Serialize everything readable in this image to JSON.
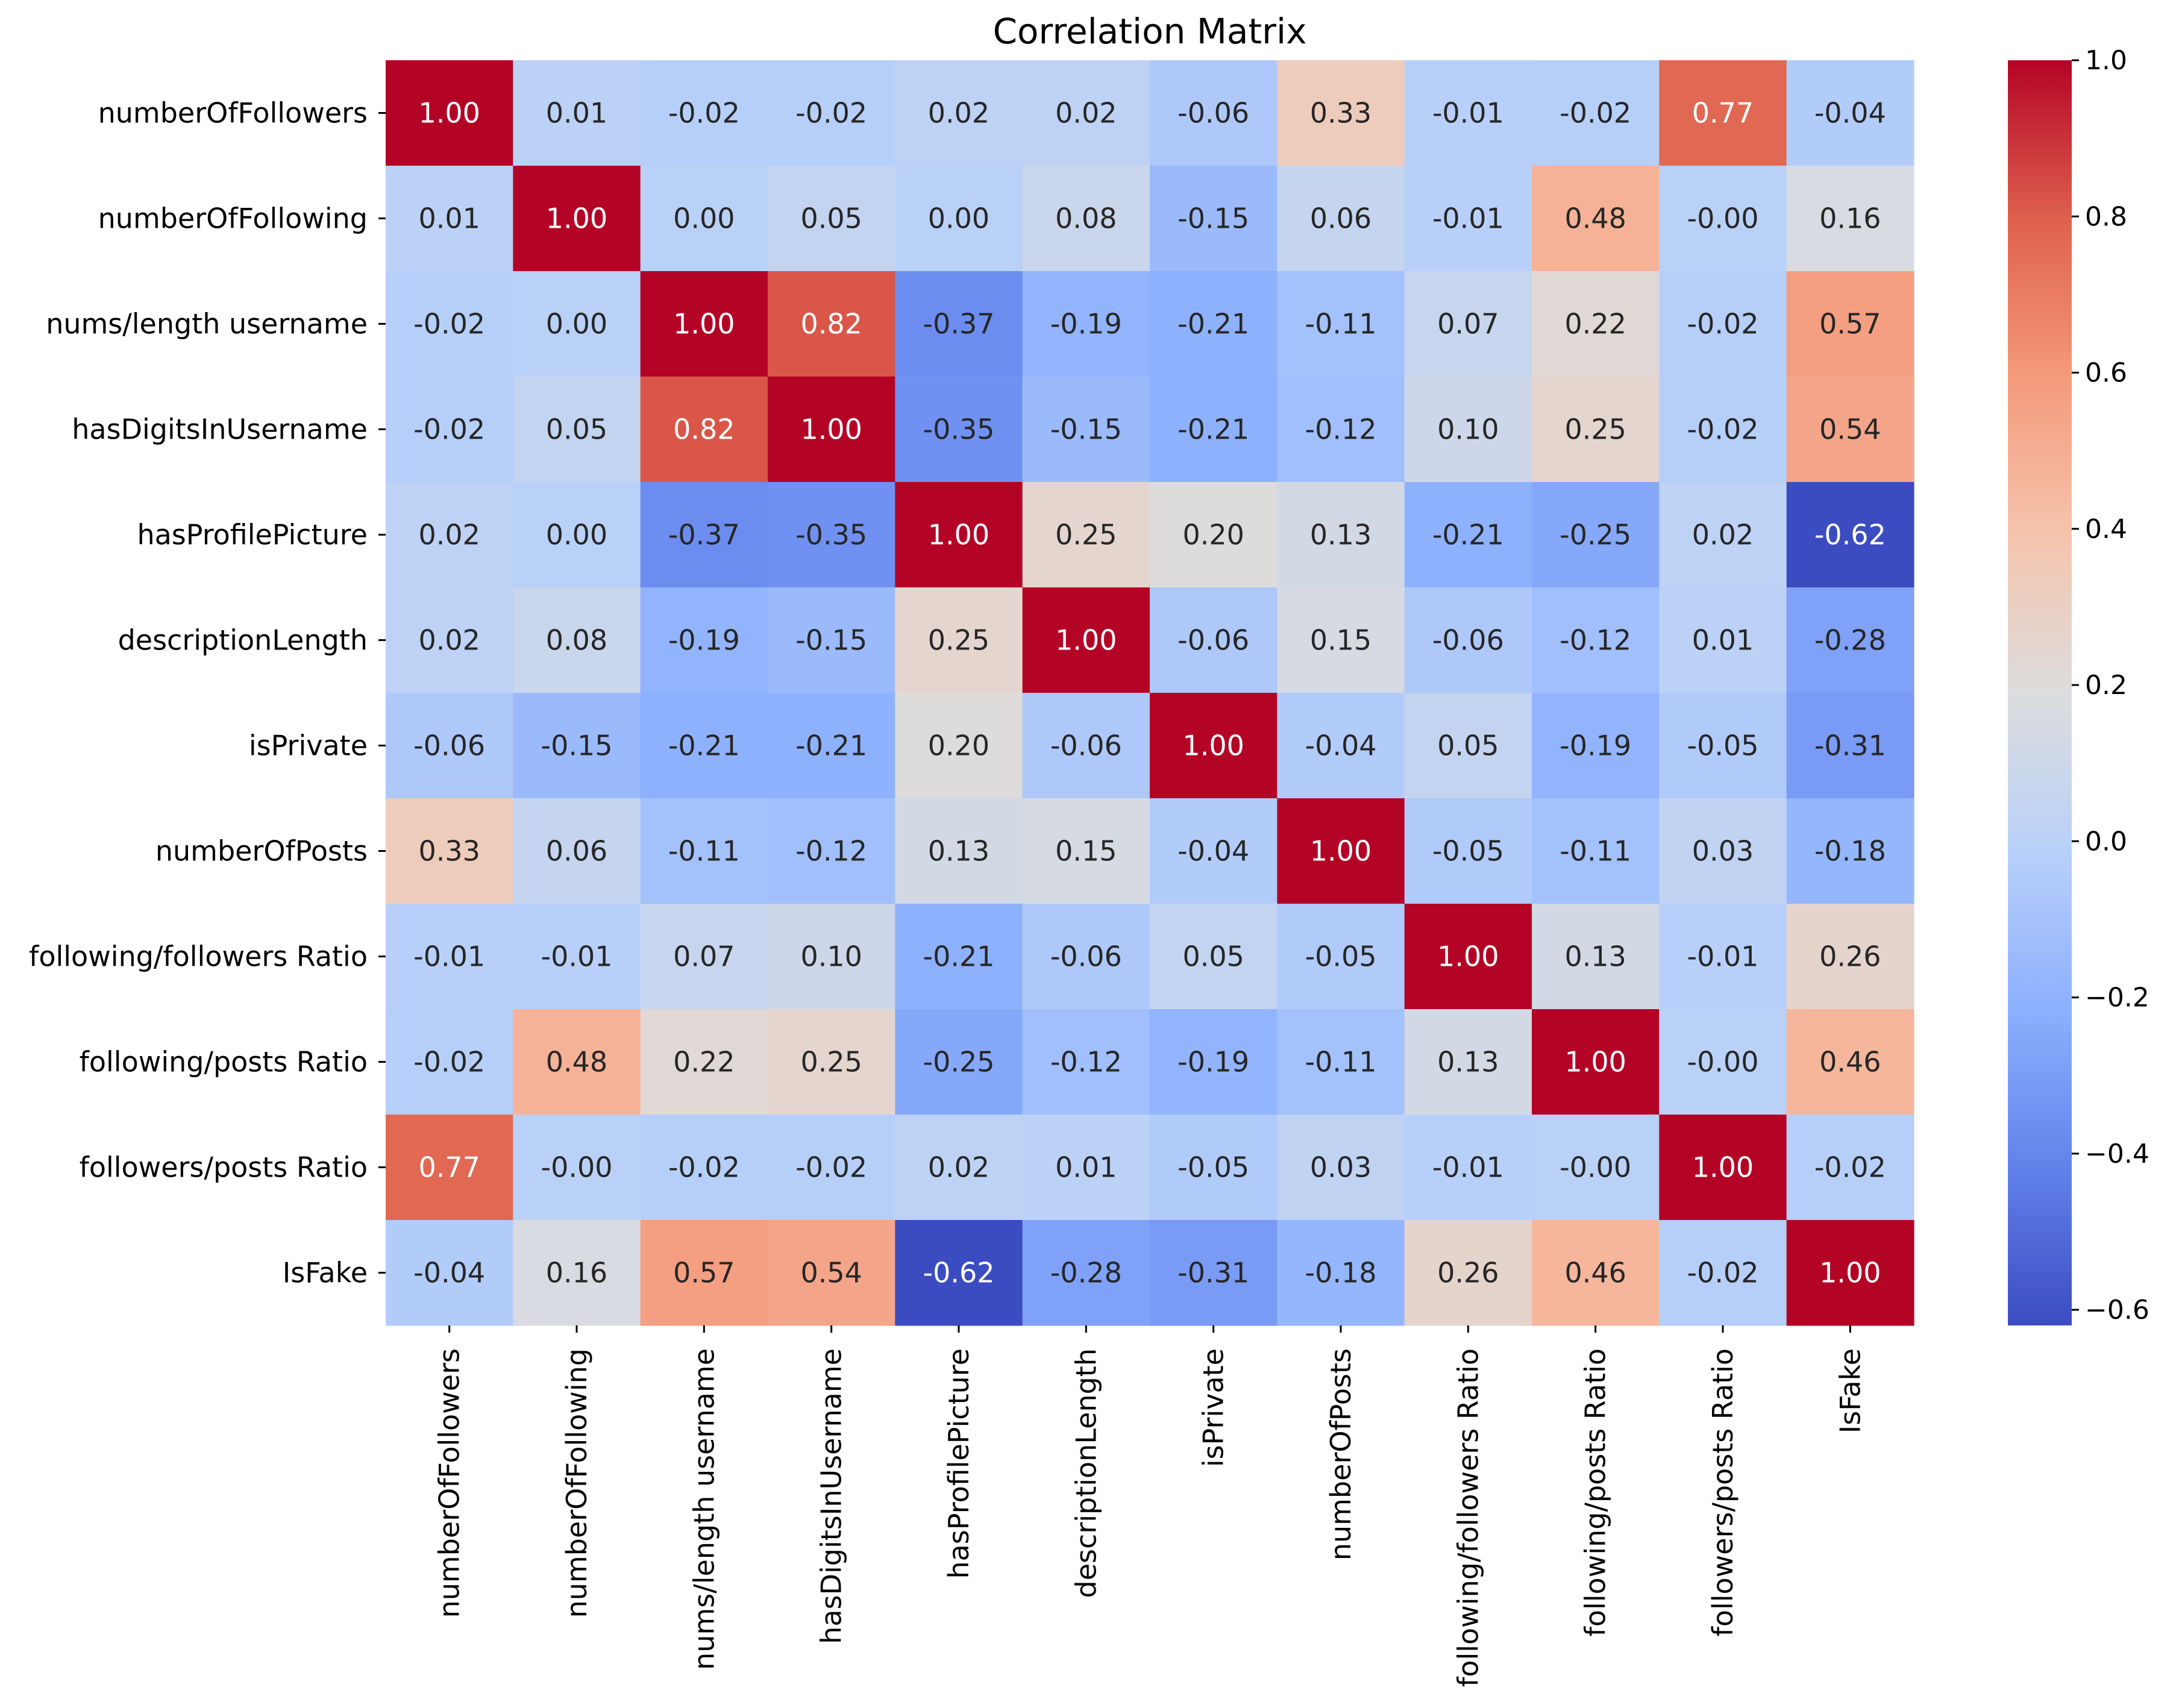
{
  "chart_data": {
    "type": "heatmap",
    "title": "Correlation Matrix",
    "xlabel": "",
    "ylabel": "",
    "colormap": "coolwarm",
    "value_range": [
      -0.62,
      1.0
    ],
    "labels": [
      "numberOfFollowers",
      "numberOfFollowing",
      "nums/length username",
      "hasDigitsInUsername",
      "hasProfilePicture",
      "descriptionLength",
      "isPrivate",
      "numberOfPosts",
      "following/followers Ratio",
      "following/posts Ratio",
      "followers/posts Ratio",
      "IsFake"
    ],
    "matrix": [
      [
        1.0,
        0.01,
        -0.02,
        -0.02,
        0.02,
        0.02,
        -0.06,
        0.33,
        -0.01,
        -0.02,
        0.77,
        -0.04
      ],
      [
        0.01,
        1.0,
        0.0,
        0.05,
        0.0,
        0.08,
        -0.15,
        0.06,
        -0.01,
        0.48,
        -0.0,
        0.16
      ],
      [
        -0.02,
        0.0,
        1.0,
        0.82,
        -0.37,
        -0.19,
        -0.21,
        -0.11,
        0.07,
        0.22,
        -0.02,
        0.57
      ],
      [
        -0.02,
        0.05,
        0.82,
        1.0,
        -0.35,
        -0.15,
        -0.21,
        -0.12,
        0.1,
        0.25,
        -0.02,
        0.54
      ],
      [
        0.02,
        0.0,
        -0.37,
        -0.35,
        1.0,
        0.25,
        0.2,
        0.13,
        -0.21,
        -0.25,
        0.02,
        -0.62
      ],
      [
        0.02,
        0.08,
        -0.19,
        -0.15,
        0.25,
        1.0,
        -0.06,
        0.15,
        -0.06,
        -0.12,
        0.01,
        -0.28
      ],
      [
        -0.06,
        -0.15,
        -0.21,
        -0.21,
        0.2,
        -0.06,
        1.0,
        -0.04,
        0.05,
        -0.19,
        -0.05,
        -0.31
      ],
      [
        0.33,
        0.06,
        -0.11,
        -0.12,
        0.13,
        0.15,
        -0.04,
        1.0,
        -0.05,
        -0.11,
        0.03,
        -0.18
      ],
      [
        -0.01,
        -0.01,
        0.07,
        0.1,
        -0.21,
        -0.06,
        0.05,
        -0.05,
        1.0,
        0.13,
        -0.01,
        0.26
      ],
      [
        -0.02,
        0.48,
        0.22,
        0.25,
        -0.25,
        -0.12,
        -0.19,
        -0.11,
        0.13,
        1.0,
        -0.0,
        0.46
      ],
      [
        0.77,
        -0.0,
        -0.02,
        -0.02,
        0.02,
        0.01,
        -0.05,
        0.03,
        -0.01,
        -0.0,
        1.0,
        -0.02
      ],
      [
        -0.04,
        0.16,
        0.57,
        0.54,
        -0.62,
        -0.28,
        -0.31,
        -0.18,
        0.26,
        0.46,
        -0.02,
        1.0
      ]
    ],
    "colorbar": {
      "ticks": [
        1.0,
        0.8,
        0.6,
        0.4,
        0.2,
        0.0,
        -0.2,
        -0.4,
        -0.6
      ],
      "tick_labels": [
        "1.0",
        "0.8",
        "0.6",
        "0.4",
        "0.2",
        "0.0",
        "−0.2",
        "−0.4",
        "−0.6"
      ]
    }
  }
}
